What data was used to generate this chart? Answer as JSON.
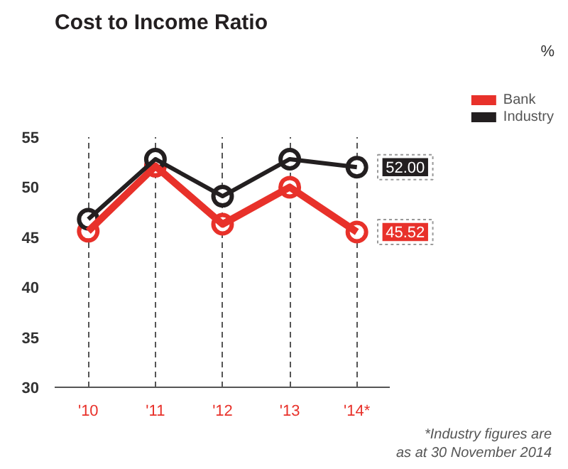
{
  "chart_data": {
    "type": "line",
    "title": "Cost to Income Ratio",
    "categories": [
      "'10",
      "'11",
      "'12",
      "'13",
      "'14*"
    ],
    "series": [
      {
        "name": "Bank",
        "color": "#e8312a",
        "values": [
          45.6,
          52.1,
          46.3,
          50.0,
          45.52
        ],
        "value_labels": [
          null,
          null,
          null,
          null,
          "45.52"
        ]
      },
      {
        "name": "Industry",
        "color": "#231f20",
        "values": [
          46.8,
          52.8,
          49.1,
          52.8,
          52.0
        ],
        "value_labels": [
          null,
          null,
          null,
          null,
          "52.00"
        ]
      }
    ],
    "ylim": [
      30,
      55
    ],
    "yticks": [
      30,
      35,
      40,
      45,
      50,
      55
    ],
    "grid": "x",
    "legend": "top right",
    "marker": "circle",
    "line_style": "solid",
    "annotations": [
      "%",
      "*Industry figures are\nas at 30 November 2014"
    ]
  }
}
